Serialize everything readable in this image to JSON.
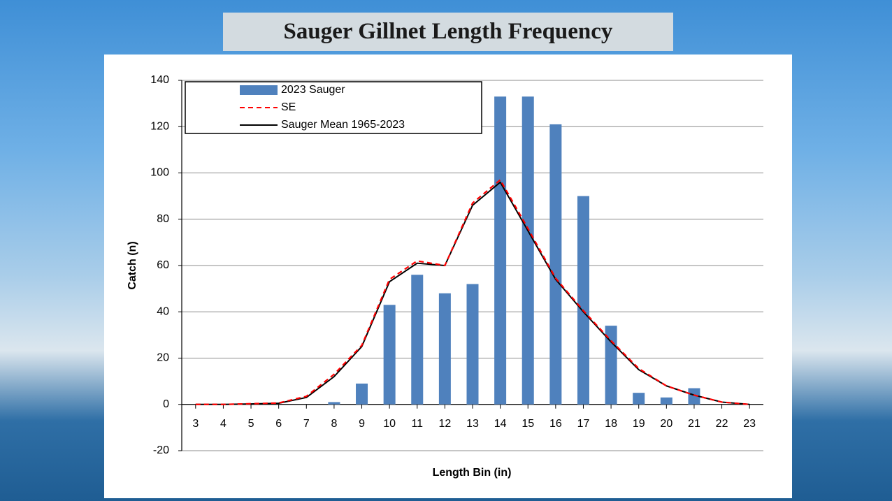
{
  "chart_data": {
    "type": "combo",
    "title": "Sauger Gillnet Length Frequency",
    "x_label": "Length Bin (in)",
    "y_label": "Catch (n)",
    "x": [
      3,
      4,
      5,
      6,
      7,
      8,
      9,
      10,
      11,
      12,
      13,
      14,
      15,
      16,
      17,
      18,
      19,
      20,
      21,
      22,
      23
    ],
    "xlim": [
      2.5,
      23.5
    ],
    "xticks": [
      3,
      4,
      5,
      6,
      7,
      8,
      9,
      10,
      11,
      12,
      13,
      14,
      15,
      16,
      17,
      18,
      19,
      20,
      21,
      22,
      23
    ],
    "ylim": [
      -20,
      140
    ],
    "yticks": [
      -20,
      0,
      20,
      40,
      60,
      80,
      100,
      120,
      140
    ],
    "grid": true,
    "legend": "top-left",
    "series": [
      {
        "name": "2023 Sauger",
        "type": "bar",
        "color": "#4f81bd",
        "values": [
          0,
          0,
          0,
          0,
          0,
          1,
          9,
          43,
          56,
          48,
          52,
          133,
          133,
          121,
          90,
          34,
          5,
          3,
          7,
          0,
          0
        ]
      },
      {
        "name": "SE",
        "type": "line",
        "dashed": true,
        "color": "#ff0000",
        "values": [
          0,
          0,
          0.3,
          0.6,
          3.5,
          13,
          25.5,
          54,
          62,
          60,
          87,
          97,
          76,
          54.5,
          40.5,
          27.5,
          15.5,
          8,
          4,
          1,
          0
        ]
      },
      {
        "name": "Sauger Mean 1965-2023",
        "type": "line",
        "dashed": false,
        "color": "#000000",
        "values": [
          0,
          0,
          0.2,
          0.5,
          3,
          12,
          25,
          53,
          61,
          60,
          86,
          96,
          75,
          54,
          40,
          27,
          15,
          8,
          4,
          1,
          0
        ]
      }
    ]
  }
}
